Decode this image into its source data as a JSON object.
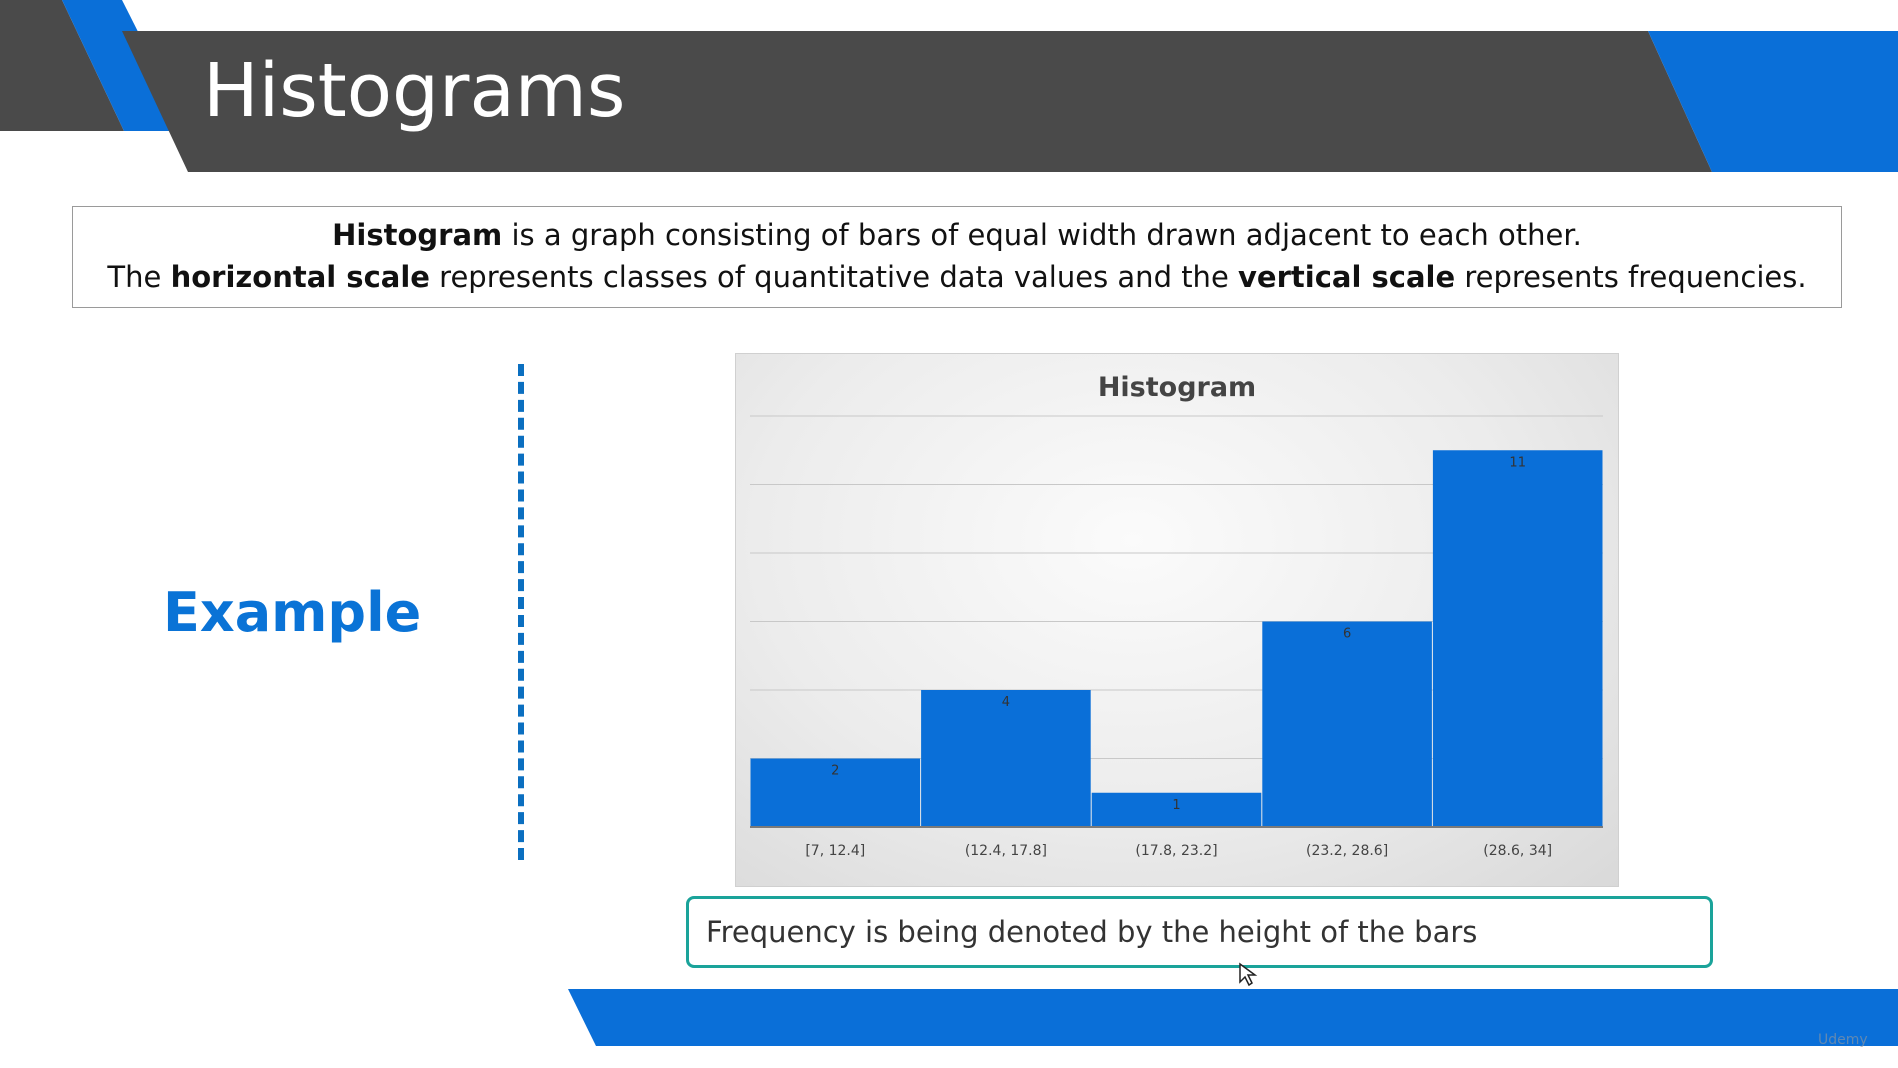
{
  "slide": {
    "title": "Histograms",
    "example_label": "Example",
    "caption": "Frequency is being denoted by the height of the bars",
    "watermark": "Udemy"
  },
  "definition": {
    "line1_bold": "Histogram",
    "line1_rest": " is a graph consisting of bars of equal width drawn adjacent to each other.",
    "line2_pre": "The ",
    "line2_bold1": "horizontal scale",
    "line2_mid": " represents classes of quantitative data values and the ",
    "line2_bold2": "vertical scale",
    "line2_post": " represents frequencies."
  },
  "colors": {
    "bar": "#0a6fd8",
    "header_dark": "#4a4a4a",
    "accent_blue": "#0a6fd8",
    "caption_border": "#1aa39a"
  },
  "chart_data": {
    "type": "bar",
    "title": "Histogram",
    "categories": [
      "[7, 12.4]",
      "(12.4, 17.8]",
      "(17.8, 23.2]",
      "(23.2, 28.6]",
      "(28.6, 34]"
    ],
    "values": [
      2,
      4,
      1,
      6,
      11
    ],
    "ylim": [
      0,
      12
    ],
    "grid": true,
    "data_labels": true
  }
}
